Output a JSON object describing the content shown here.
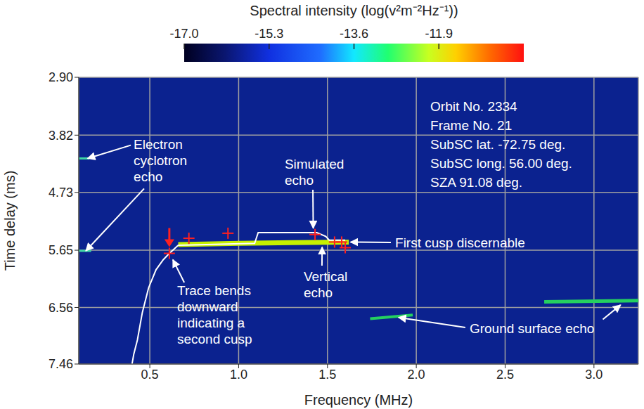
{
  "chart_data": {
    "type": "line",
    "x_label": "Frequency (MHz)",
    "y_label": "Time delay (ms)",
    "xlim": [
      0.1,
      3.25
    ],
    "xticks": [
      0.5,
      {
        "value": 1,
        "label": "1.0"
      },
      1.5,
      {
        "value": 2,
        "label": "2.0"
      },
      2.5,
      {
        "value": 3,
        "label": "3.0"
      }
    ],
    "ylim": [
      7.46,
      2.9
    ],
    "yticks": [
      {
        "value": 2.9,
        "label": "2.90"
      },
      3.82,
      4.73,
      5.65,
      6.56,
      7.46
    ],
    "grid": true,
    "colorbar": {
      "title": "Spectral intensity (log(v²m⁻²Hz⁻¹))",
      "range": [
        -17.0,
        -10.2
      ],
      "ticks": [
        {
          "value": -17,
          "label": "-17.0"
        },
        -15.3,
        -13.6,
        -11.9
      ]
    },
    "info": [
      "Orbit No. 2334",
      "Frame No. 21",
      "SubSC lat. -72.75 deg.",
      "SubSC long. 56.00 deg.",
      "SZA 91.08 deg."
    ],
    "series": [
      {
        "type": "line",
        "color": "#3fd6a6",
        "values": [
          [
            0.1,
            4.19
          ],
          [
            0.16,
            4.19
          ]
        ]
      },
      {
        "type": "line",
        "color": "#3fd6a6",
        "values": [
          [
            0.1,
            5.66
          ],
          [
            0.17,
            5.66
          ]
        ]
      },
      {
        "type": "line",
        "color": "#c6f000",
        "values": [
          [
            0.66,
            5.56
          ],
          [
            1.0,
            5.54
          ],
          [
            1.3,
            5.53
          ],
          [
            1.62,
            5.52
          ]
        ]
      },
      {
        "type": "line",
        "color": "#25d060",
        "values": [
          [
            1.74,
            6.74
          ],
          [
            1.98,
            6.68
          ]
        ]
      },
      {
        "type": "line",
        "color": "#25d060",
        "values": [
          [
            2.72,
            6.47
          ],
          [
            3.25,
            6.45
          ]
        ]
      },
      {
        "type": "line",
        "color": "#ffffff",
        "values": [
          [
            0.4,
            7.46
          ],
          [
            0.41,
            7.3
          ],
          [
            0.43,
            7.08
          ],
          [
            0.458,
            6.64
          ],
          [
            0.493,
            6.25
          ],
          [
            0.535,
            5.96
          ],
          [
            0.576,
            5.8
          ],
          [
            0.61,
            5.7
          ],
          [
            0.66,
            5.57
          ],
          [
            1.09,
            5.54
          ],
          [
            1.11,
            5.37
          ],
          [
            1.44,
            5.37
          ],
          [
            1.49,
            5.43
          ],
          [
            1.51,
            5.49
          ],
          [
            1.6,
            5.49
          ]
        ]
      },
      {
        "type": "scatter",
        "color": "#ff2020",
        "marker": "cross",
        "values": [
          [
            0.61,
            5.7
          ],
          [
            0.72,
            5.46
          ],
          [
            0.94,
            5.38
          ],
          [
            1.43,
            5.4
          ],
          [
            1.54,
            5.52
          ],
          [
            1.58,
            5.52
          ],
          [
            1.6,
            5.61
          ]
        ]
      },
      {
        "type": "scatter",
        "color": "#ff2020",
        "marker": "arrow",
        "values": [
          [
            0.61,
            5.7
          ]
        ]
      }
    ],
    "annotations": [
      {
        "text": "Electron cyclotron echo",
        "points_to": [
          [
            0.15,
            4.19
          ],
          [
            0.14,
            5.66
          ]
        ]
      },
      {
        "text": "Simulated echo",
        "points_to": [
          [
            1.42,
            5.3
          ]
        ]
      },
      {
        "text": "Vertical echo",
        "points_to": [
          [
            1.47,
            5.6
          ]
        ]
      },
      {
        "text": "First cusp discernable",
        "points_to": [
          [
            1.63,
            5.52
          ]
        ]
      },
      {
        "text": "Trace bends downward indicating a second cusp",
        "points_to": [
          [
            0.63,
            5.8
          ]
        ]
      },
      {
        "text": "Ground surface echo",
        "points_to": [
          [
            1.9,
            6.72
          ],
          [
            3.15,
            6.52
          ]
        ]
      }
    ]
  }
}
